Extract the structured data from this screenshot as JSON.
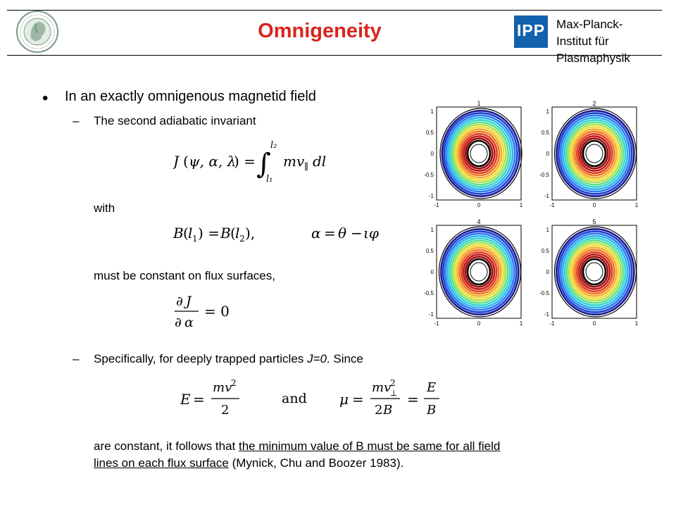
{
  "header": {
    "title": "Omnigeneity",
    "ipp_logo_text": "IPP",
    "institute_line1": "Max-Planck-",
    "institute_line2": "Institut für",
    "institute_line3": "Plasmaphysik"
  },
  "body": {
    "bullet": "In an exactly omnigenous  magnetid field",
    "sub1": "The second adiabatic invariant",
    "with": "with",
    "must": "must be constant on flux surfaces,",
    "sub2_pre": "Specifically, for deeply trapped particles ",
    "sub2_j": "J=0",
    "sub2_post": ". Since",
    "are_constant": "are constant, it follows that ",
    "underlined_1": "the minimum  value of B must be same for all field",
    "underlined_2": "lines on each flux surface",
    "citation": " (Mynick, Chu and Boozer 1983)."
  },
  "plots": {
    "panel_titles": [
      "1",
      "2",
      "4",
      "5"
    ],
    "y_ticks": [
      "1",
      "0.5",
      "0",
      "-0.5",
      "-1"
    ],
    "x_ticks": [
      "-1",
      "0",
      "1"
    ]
  },
  "colors": {
    "title": "#d9241c",
    "logo": "#1261ad"
  }
}
